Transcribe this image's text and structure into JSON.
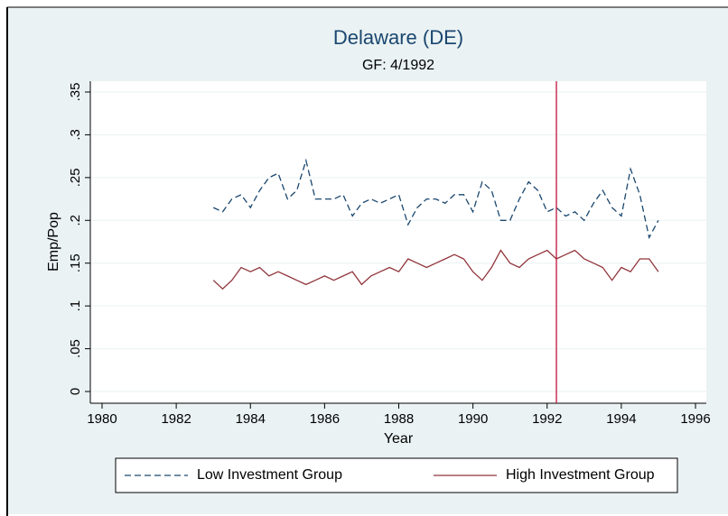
{
  "chart_data": {
    "type": "line",
    "title": "Delaware (DE)",
    "subtitle": "GF: 4/1992",
    "xlabel": "Year",
    "ylabel": "Emp/Pop",
    "x": [
      1983,
      1983.25,
      1983.5,
      1983.75,
      1984,
      1984.25,
      1984.5,
      1984.75,
      1985,
      1985.25,
      1985.5,
      1985.75,
      1986,
      1986.25,
      1986.5,
      1986.75,
      1987,
      1987.25,
      1987.5,
      1987.75,
      1988,
      1988.25,
      1988.5,
      1988.75,
      1989,
      1989.25,
      1989.5,
      1989.75,
      1990,
      1990.25,
      1990.5,
      1990.75,
      1991,
      1991.25,
      1991.5,
      1991.75,
      1992,
      1992.25,
      1992.5,
      1992.75,
      1993,
      1993.25,
      1993.5,
      1993.75,
      1994,
      1994.25,
      1994.5,
      1994.75,
      1995
    ],
    "series": [
      {
        "name": "Low Investment Group",
        "color": "#1a476f",
        "dashed": true,
        "values": [
          0.215,
          0.21,
          0.225,
          0.23,
          0.215,
          0.235,
          0.25,
          0.255,
          0.225,
          0.235,
          0.27,
          0.225,
          0.225,
          0.225,
          0.23,
          0.205,
          0.22,
          0.225,
          0.22,
          0.225,
          0.23,
          0.195,
          0.215,
          0.225,
          0.225,
          0.22,
          0.23,
          0.23,
          0.21,
          0.245,
          0.235,
          0.2,
          0.2,
          0.225,
          0.245,
          0.235,
          0.21,
          0.215,
          0.205,
          0.21,
          0.2,
          0.22,
          0.235,
          0.215,
          0.205,
          0.26,
          0.23,
          0.18,
          0.2
        ]
      },
      {
        "name": "High Investment Group",
        "color": "#90353b",
        "dashed": false,
        "values": [
          0.13,
          0.12,
          0.13,
          0.145,
          0.14,
          0.145,
          0.135,
          0.14,
          0.135,
          0.13,
          0.125,
          0.13,
          0.135,
          0.13,
          0.135,
          0.14,
          0.125,
          0.135,
          0.14,
          0.145,
          0.14,
          0.155,
          0.15,
          0.145,
          0.15,
          0.155,
          0.16,
          0.155,
          0.14,
          0.13,
          0.145,
          0.165,
          0.15,
          0.145,
          0.155,
          0.16,
          0.165,
          0.155,
          0.16,
          0.165,
          0.155,
          0.15,
          0.145,
          0.13,
          0.145,
          0.14,
          0.155,
          0.155,
          0.14
        ]
      }
    ],
    "vline": 1992.25,
    "vline_color": "#c0143c",
    "xlim": [
      1980,
      1996
    ],
    "xticks": [
      1980,
      1982,
      1984,
      1986,
      1988,
      1990,
      1992,
      1994,
      1996
    ],
    "ylim": [
      0,
      0.35
    ],
    "yticks": [
      0,
      {
        "value": 0.05,
        "label": ".05"
      },
      {
        "value": 0.1,
        "label": ".1"
      },
      {
        "value": 0.15,
        "label": ".15"
      },
      {
        "value": 0.2,
        "label": ".2"
      },
      {
        "value": 0.25,
        "label": ".25"
      },
      {
        "value": 0.3,
        "label": ".3"
      },
      {
        "value": 0.35,
        "label": ".35"
      }
    ],
    "grid": true,
    "legend": "bottom"
  }
}
